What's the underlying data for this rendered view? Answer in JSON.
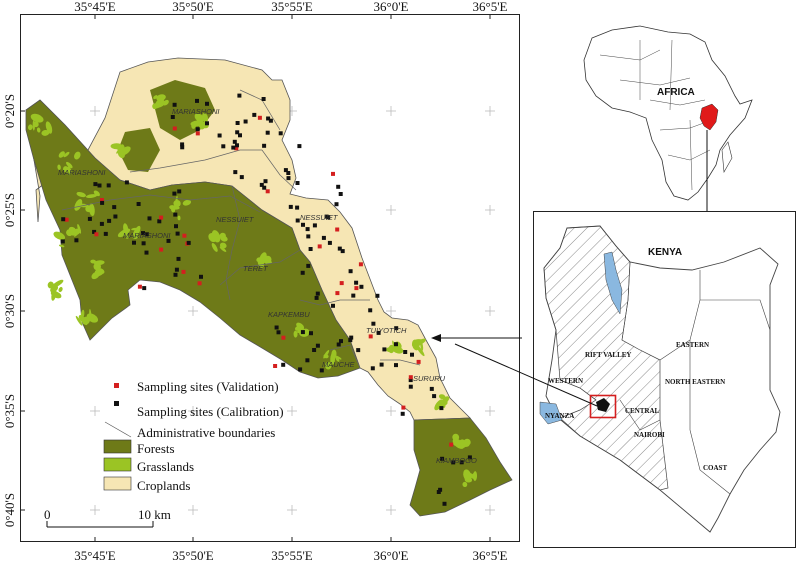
{
  "main_map": {
    "top_ticks": [
      "35°45'E",
      "35°50'E",
      "35°55'E",
      "36°0'E",
      "36°5'E"
    ],
    "bottom_ticks": [
      "35°45'E",
      "35°50'E",
      "35°55'E",
      "36°0'E",
      "36°5'E"
    ],
    "left_ticks": [
      "0°20'S",
      "0°25'S",
      "0°30'S",
      "0°35'S",
      "0°40'S"
    ],
    "places": [
      {
        "name": "MARIASHONI"
      },
      {
        "name": "MARIASHONI"
      },
      {
        "name": "MARIASHONI"
      },
      {
        "name": "NESSUIET"
      },
      {
        "name": "NESSUIET"
      },
      {
        "name": "TERET"
      },
      {
        "name": "KAPKEMBU"
      },
      {
        "name": "TUIYOTICH"
      },
      {
        "name": "MAUCHE"
      },
      {
        "name": "SURURU"
      },
      {
        "name": "KIAMBOGO"
      }
    ],
    "scale_start": "0",
    "scale_end": "10 km",
    "colors": {
      "forests": "#6e7a18",
      "grasslands": "#9bc424",
      "croplands": "#f6e6b4",
      "validation": "#d41f1f",
      "calibration": "#111111"
    }
  },
  "legend": {
    "validation": "Sampling sites (Validation)",
    "calibration": "Sampling sites (Calibration)",
    "boundaries": "Administrative boundaries",
    "forests": "Forests",
    "grasslands": "Grasslands",
    "croplands": "Croplands"
  },
  "africa": {
    "label": "AFRICA",
    "highlight_color": "#e01a1a"
  },
  "kenya": {
    "title": "KENYA",
    "regions": [
      "RIFT VALLEY",
      "EASTERN",
      "WESTERN",
      "NORTH EASTERN",
      "NYANZA",
      "CENTRAL",
      "NAIROBI",
      "COAST"
    ],
    "lake_color": "#8ab8e0",
    "box_color": "#d41f1f"
  }
}
